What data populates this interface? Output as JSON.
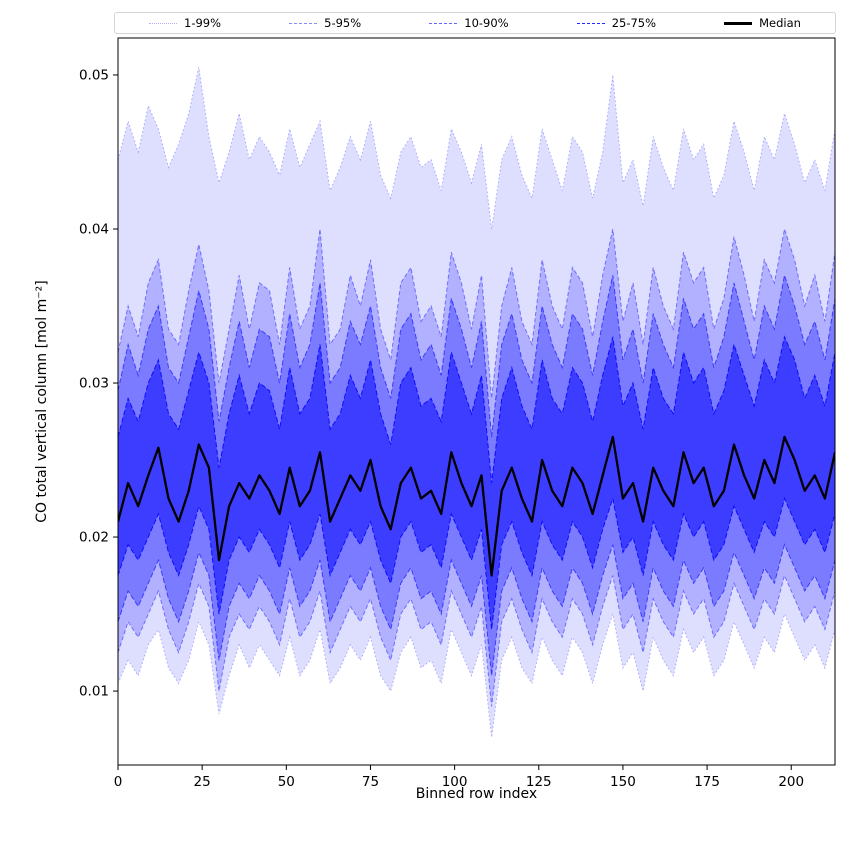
{
  "figure": {
    "background": "#ffffff"
  },
  "chart_data": {
    "type": "area",
    "title": "",
    "xlabel": "Binned row index",
    "ylabel": "CO total vertical column [mol m⁻²]",
    "units_note": "all series values, ylim and y_tick v are in 10⁻³ mol m⁻² (tick labels show true values)",
    "grid": false,
    "legend_position": "top outside axes, horizontal row",
    "xlim": [
      0,
      213
    ],
    "ylim": [
      5.2,
      52.4
    ],
    "x_ticks": [
      {
        "v": 0,
        "label": "0"
      },
      {
        "v": 25,
        "label": "25"
      },
      {
        "v": 50,
        "label": "50"
      },
      {
        "v": 75,
        "label": "75"
      },
      {
        "v": 100,
        "label": "100"
      },
      {
        "v": 125,
        "label": "125"
      },
      {
        "v": 150,
        "label": "150"
      },
      {
        "v": 175,
        "label": "175"
      },
      {
        "v": 200,
        "label": "200"
      }
    ],
    "y_ticks": [
      {
        "v": 10,
        "label": "0.01"
      },
      {
        "v": 20,
        "label": "0.02"
      },
      {
        "v": 30,
        "label": "0.03"
      },
      {
        "v": 40,
        "label": "0.04"
      },
      {
        "v": 50,
        "label": "0.05"
      }
    ],
    "band_color": "#0000ff",
    "median_style": {
      "color": "#000000",
      "width": 2.3
    },
    "x": [
      0,
      3,
      6,
      9,
      12,
      15,
      18,
      21,
      24,
      27,
      30,
      33,
      36,
      39,
      42,
      45,
      48,
      51,
      54,
      57,
      60,
      63,
      66,
      69,
      72,
      75,
      78,
      81,
      84,
      87,
      90,
      93,
      96,
      99,
      102,
      105,
      108,
      111,
      114,
      117,
      120,
      123,
      126,
      129,
      132,
      135,
      138,
      141,
      144,
      147,
      150,
      153,
      156,
      159,
      162,
      165,
      168,
      171,
      174,
      177,
      180,
      183,
      186,
      189,
      192,
      195,
      198,
      201,
      204,
      207,
      210,
      213
    ],
    "series": {
      "p01": [
        10.5,
        12.0,
        11.0,
        13.0,
        14.0,
        11.5,
        10.5,
        12.0,
        14.5,
        13.0,
        8.5,
        11.0,
        13.0,
        11.5,
        13.0,
        12.0,
        11.0,
        13.5,
        11.0,
        12.0,
        14.0,
        10.5,
        11.5,
        13.0,
        12.0,
        13.5,
        11.0,
        10.0,
        12.5,
        13.5,
        11.5,
        12.0,
        10.5,
        14.0,
        12.5,
        11.0,
        13.0,
        7.0,
        12.0,
        13.5,
        11.5,
        10.5,
        13.5,
        12.0,
        11.0,
        13.5,
        12.5,
        10.5,
        13.0,
        15.0,
        11.5,
        12.5,
        10.0,
        13.5,
        12.0,
        11.0,
        14.0,
        12.5,
        13.5,
        11.0,
        12.0,
        14.5,
        13.0,
        11.5,
        13.5,
        12.5,
        15.0,
        13.5,
        12.0,
        13.0,
        11.5,
        14.0
      ],
      "p05": [
        12.5,
        14.5,
        13.5,
        15.0,
        16.5,
        14.0,
        12.5,
        14.5,
        17.0,
        15.5,
        10.0,
        13.5,
        15.0,
        14.0,
        15.5,
        14.5,
        13.0,
        16.0,
        13.5,
        14.5,
        16.5,
        12.5,
        14.0,
        15.5,
        14.5,
        16.0,
        13.5,
        12.0,
        15.0,
        16.0,
        14.0,
        14.5,
        13.0,
        16.5,
        15.0,
        13.5,
        15.5,
        9.0,
        14.5,
        16.0,
        14.0,
        12.5,
        16.0,
        14.5,
        13.5,
        16.0,
        15.0,
        13.0,
        15.5,
        17.5,
        14.0,
        15.0,
        12.5,
        16.0,
        14.5,
        13.5,
        16.5,
        15.0,
        16.0,
        13.5,
        14.5,
        17.0,
        15.5,
        14.0,
        16.0,
        15.0,
        17.5,
        16.0,
        14.5,
        15.5,
        14.0,
        16.5
      ],
      "p10": [
        14.5,
        16.5,
        15.5,
        17.0,
        18.5,
        16.0,
        14.5,
        16.5,
        19.0,
        17.5,
        12.0,
        15.5,
        17.0,
        16.0,
        17.5,
        16.5,
        15.0,
        18.0,
        15.5,
        16.5,
        18.5,
        14.5,
        16.0,
        17.5,
        16.5,
        18.0,
        15.5,
        14.0,
        17.0,
        18.0,
        16.0,
        16.5,
        15.0,
        18.5,
        17.0,
        15.5,
        17.5,
        11.0,
        16.5,
        18.0,
        16.0,
        14.5,
        18.0,
        16.5,
        15.5,
        18.0,
        17.0,
        15.0,
        17.5,
        19.5,
        16.0,
        17.0,
        14.5,
        18.0,
        16.5,
        15.5,
        18.5,
        17.0,
        18.0,
        15.5,
        16.5,
        19.0,
        17.5,
        16.0,
        18.0,
        17.0,
        19.5,
        18.0,
        16.5,
        17.5,
        16.0,
        18.5
      ],
      "p25": [
        17.5,
        19.5,
        18.5,
        20.0,
        21.5,
        19.0,
        17.5,
        19.5,
        22.0,
        20.5,
        15.0,
        18.5,
        20.0,
        19.0,
        20.5,
        19.5,
        18.0,
        21.0,
        18.5,
        19.5,
        21.5,
        17.5,
        19.0,
        20.5,
        19.5,
        21.0,
        18.5,
        17.0,
        20.0,
        21.0,
        19.0,
        19.5,
        18.0,
        21.5,
        20.0,
        18.5,
        20.5,
        14.0,
        19.5,
        21.0,
        19.0,
        17.5,
        21.0,
        19.5,
        18.5,
        21.0,
        20.0,
        18.0,
        20.5,
        22.5,
        19.0,
        20.0,
        17.5,
        21.0,
        19.5,
        18.5,
        21.5,
        20.0,
        21.0,
        18.5,
        19.5,
        22.0,
        20.5,
        19.0,
        21.0,
        20.0,
        22.5,
        21.0,
        19.5,
        20.5,
        19.0,
        21.5
      ],
      "median": [
        21.0,
        23.5,
        22.0,
        24.0,
        25.8,
        22.5,
        21.0,
        23.0,
        26.0,
        24.5,
        18.5,
        22.0,
        23.5,
        22.5,
        24.0,
        23.0,
        21.5,
        24.5,
        22.0,
        23.0,
        25.5,
        21.0,
        22.5,
        24.0,
        23.0,
        25.0,
        22.0,
        20.5,
        23.5,
        24.5,
        22.5,
        23.0,
        21.5,
        25.5,
        23.5,
        22.0,
        24.0,
        17.5,
        23.0,
        24.5,
        22.5,
        21.0,
        25.0,
        23.0,
        22.0,
        24.5,
        23.5,
        21.5,
        24.0,
        26.5,
        22.5,
        23.5,
        21.0,
        24.5,
        23.0,
        22.0,
        25.5,
        23.5,
        24.5,
        22.0,
        23.0,
        26.0,
        24.0,
        22.5,
        25.0,
        23.5,
        26.5,
        25.0,
        23.0,
        24.0,
        22.5,
        25.5
      ],
      "p75": [
        26.5,
        29.0,
        27.5,
        30.0,
        31.5,
        28.0,
        27.0,
        29.5,
        32.0,
        30.0,
        24.5,
        28.0,
        30.5,
        28.0,
        30.0,
        29.5,
        27.0,
        31.0,
        28.0,
        29.0,
        32.5,
        27.0,
        28.0,
        30.5,
        29.0,
        31.5,
        28.0,
        26.0,
        30.0,
        31.0,
        28.5,
        29.0,
        27.5,
        32.0,
        30.0,
        28.0,
        30.5,
        23.5,
        29.0,
        31.0,
        28.5,
        27.0,
        31.5,
        29.0,
        28.0,
        31.0,
        30.0,
        27.5,
        30.5,
        33.0,
        28.5,
        30.0,
        27.0,
        31.0,
        29.0,
        28.0,
        32.0,
        30.0,
        31.0,
        28.0,
        29.5,
        32.5,
        30.5,
        28.5,
        31.5,
        30.0,
        33.0,
        31.5,
        29.0,
        30.5,
        28.5,
        32.0
      ],
      "p90": [
        29.5,
        32.5,
        30.5,
        33.5,
        35.0,
        31.0,
        30.0,
        33.0,
        36.0,
        33.5,
        27.5,
        31.0,
        34.0,
        31.0,
        33.5,
        33.0,
        30.0,
        34.5,
        31.0,
        32.5,
        36.5,
        30.0,
        31.0,
        34.0,
        32.5,
        35.0,
        31.0,
        29.0,
        33.5,
        34.5,
        31.5,
        32.5,
        30.5,
        35.5,
        33.5,
        31.0,
        34.0,
        26.5,
        32.5,
        34.5,
        31.5,
        30.0,
        35.0,
        32.5,
        31.0,
        34.5,
        33.5,
        30.5,
        34.0,
        37.0,
        31.5,
        33.5,
        30.0,
        34.5,
        32.5,
        31.0,
        35.5,
        33.5,
        34.5,
        31.0,
        33.0,
        36.5,
        34.0,
        31.5,
        35.0,
        33.5,
        37.0,
        35.0,
        32.5,
        34.0,
        31.5,
        35.5
      ],
      "p95": [
        32.0,
        35.0,
        33.0,
        36.5,
        38.0,
        33.5,
        32.5,
        36.0,
        39.0,
        36.0,
        30.0,
        33.5,
        37.0,
        33.5,
        36.5,
        36.0,
        32.5,
        37.5,
        33.5,
        35.0,
        40.0,
        32.5,
        33.5,
        37.0,
        35.0,
        38.0,
        33.5,
        31.5,
        36.5,
        37.5,
        34.0,
        35.0,
        33.0,
        38.5,
        36.5,
        33.5,
        37.0,
        29.0,
        35.0,
        37.5,
        34.0,
        32.5,
        38.0,
        35.0,
        33.5,
        37.5,
        36.5,
        33.0,
        37.0,
        40.0,
        34.0,
        36.5,
        32.5,
        37.5,
        35.0,
        33.5,
        38.5,
        36.5,
        37.5,
        33.5,
        35.5,
        39.5,
        37.0,
        34.0,
        38.0,
        36.5,
        40.0,
        38.0,
        35.0,
        37.0,
        34.0,
        38.5
      ],
      "p99": [
        44.5,
        47.0,
        45.0,
        48.0,
        46.5,
        44.0,
        45.5,
        47.5,
        50.5,
        46.0,
        43.0,
        45.0,
        47.5,
        44.5,
        46.0,
        45.0,
        43.5,
        46.5,
        44.0,
        45.5,
        47.0,
        42.5,
        44.0,
        46.0,
        44.5,
        47.0,
        43.5,
        42.0,
        45.0,
        46.0,
        44.0,
        44.5,
        42.5,
        46.5,
        45.0,
        43.0,
        45.5,
        40.0,
        44.5,
        46.0,
        43.5,
        42.0,
        46.5,
        44.5,
        42.5,
        46.0,
        45.0,
        42.0,
        45.0,
        50.0,
        43.0,
        44.5,
        41.5,
        46.0,
        44.0,
        42.5,
        46.5,
        44.5,
        45.5,
        42.0,
        43.5,
        47.0,
        45.0,
        42.5,
        46.0,
        44.5,
        47.5,
        45.5,
        43.0,
        44.5,
        42.5,
        46.5
      ]
    },
    "bands": [
      {
        "label": "1-99%",
        "lower": "p01",
        "upper": "p99",
        "fill_alpha": 0.13,
        "edge_alpha": 0.3,
        "dash": "1.5 2.5"
      },
      {
        "label": "5-95%",
        "lower": "p05",
        "upper": "p95",
        "fill_alpha": 0.2,
        "edge_alpha": 0.45,
        "dash": "4 2.5"
      },
      {
        "label": "10-90%",
        "lower": "p10",
        "upper": "p90",
        "fill_alpha": 0.3,
        "edge_alpha": 0.6,
        "dash": "5 2.5"
      },
      {
        "label": "25-75%",
        "lower": "p25",
        "upper": "p75",
        "fill_alpha": 0.5,
        "edge_alpha": 0.85,
        "dash": "5 2.5"
      }
    ],
    "legend": [
      {
        "label": "1-99%",
        "dash": "dotted",
        "alpha": 0.3,
        "color": "#0000ff",
        "thickness": 1.5
      },
      {
        "label": "5-95%",
        "dash": "dashed",
        "alpha": 0.45,
        "color": "#0000ff",
        "thickness": 1.5
      },
      {
        "label": "10-90%",
        "dash": "dashed",
        "alpha": 0.6,
        "color": "#0000ff",
        "thickness": 1.6
      },
      {
        "label": "25-75%",
        "dash": "dashed",
        "alpha": 0.85,
        "color": "#0000ff",
        "thickness": 1.8
      },
      {
        "label": "Median",
        "dash": "solid",
        "alpha": 1,
        "color": "#000000",
        "thickness": 3
      }
    ]
  }
}
